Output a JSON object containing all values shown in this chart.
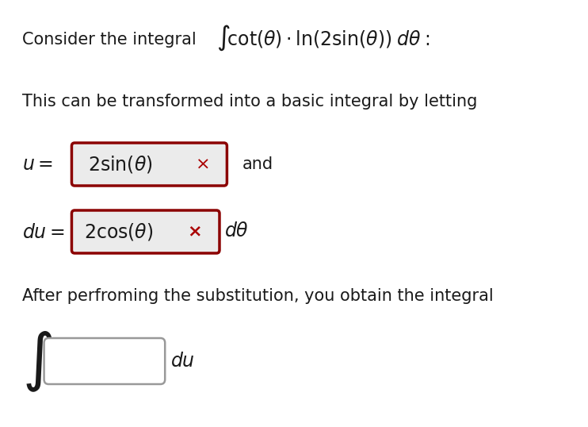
{
  "background_color": "#ffffff",
  "figsize": [
    7.42,
    5.38
  ],
  "dpi": 100,
  "box_color": "#8b0000",
  "box_fill": "#ebebeb",
  "x_mark_color": "#aa0000",
  "blank_box_color": "#999999",
  "text_color": "#1a1a1a",
  "line1_text": "Consider the integral",
  "line1_math": "$\\int\\!\\mathrm{cot}(\\theta) \\cdot \\ln(2\\sin(\\theta))\\; d\\theta:$",
  "line2_text": "This can be transformed into a basic integral by letting",
  "line3_u": "$u =$",
  "line3_box": "$2\\sin(\\theta)$",
  "line3_x": "$\\times$",
  "line3_and": "and",
  "line4_du": "$du =$",
  "line4_box": "$2\\cos(\\theta)\\;$",
  "line4_x": "$\\mathbf{\\times}$",
  "line4_dtheta": "$d\\theta$",
  "line5_text": "After perfroming the substitution, you obtain the integral",
  "line6_int": "$\\int$",
  "line6_du": "$du$"
}
